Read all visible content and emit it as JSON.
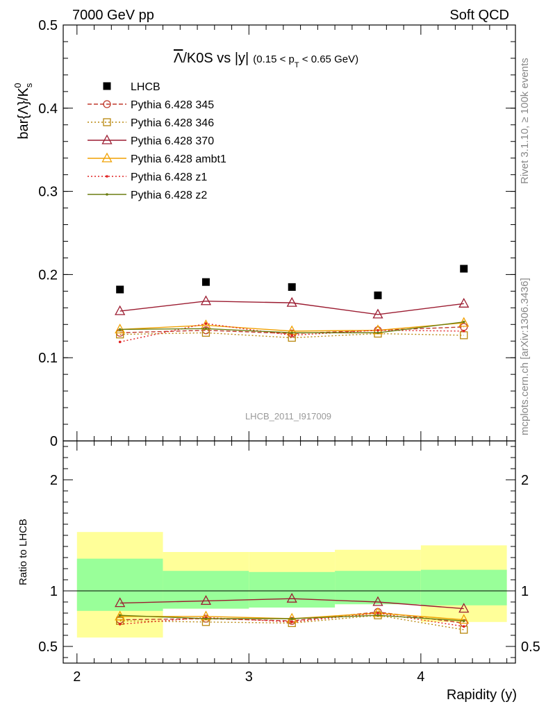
{
  "header": {
    "left": "7000 GeV pp",
    "right": "Soft QCD"
  },
  "side_labels": {
    "rivet": "Rivet 3.1.10, ≥ 100k events",
    "mcplots": "mcplots.cern.ch [arXiv:1306.3436]"
  },
  "watermark": "LHCB_2011_I917009",
  "colors": {
    "data": "#000000",
    "p345": "#c0392b",
    "p346": "#b8860b",
    "p370": "#9b1b30",
    "ambt1": "#f0a000",
    "z1": "#e02020",
    "z2": "#6b7d10",
    "band_inner": "#99ff99",
    "band_outer": "#ffff99"
  },
  "chart_data": [
    {
      "type": "scatter",
      "panel": "main",
      "title_main": "Λ/K0S vs |y|",
      "title_overline": "Λ",
      "title_rest": "/K0S vs |y|",
      "title_cut": "(0.15 < p",
      "title_cut_sub": "T",
      "title_cut_end": " < 0.65 GeV)",
      "ylabel": "bar{Λ}/K",
      "ylabel_sup": "0",
      "ylabel_sub": "s",
      "xlabel": "Rapidity (y)",
      "xlim": [
        1.92,
        4.55
      ],
      "ylim": [
        0.0,
        0.5
      ],
      "yticks": [
        0,
        0.1,
        0.2,
        0.3,
        0.4,
        0.5
      ],
      "ytick_labels": [
        "0",
        "0.1",
        "0.2",
        "0.3",
        "0.4",
        "0.5"
      ],
      "x": [
        2.25,
        2.75,
        3.25,
        3.75,
        4.25
      ],
      "series": [
        {
          "name": "LHCB",
          "key": "data",
          "values": [
            0.182,
            0.191,
            0.185,
            0.175,
            0.207
          ]
        },
        {
          "name": "Pythia 6.428 345",
          "key": "p345",
          "values": [
            0.13,
            0.133,
            0.129,
            0.133,
            0.137
          ]
        },
        {
          "name": "Pythia 6.428 346",
          "key": "p346",
          "values": [
            0.128,
            0.13,
            0.124,
            0.129,
            0.127
          ]
        },
        {
          "name": "Pythia 6.428 370",
          "key": "p370",
          "values": [
            0.156,
            0.168,
            0.166,
            0.152,
            0.165
          ]
        },
        {
          "name": "Pythia 6.428 ambt1",
          "key": "ambt1",
          "values": [
            0.134,
            0.139,
            0.132,
            0.133,
            0.142
          ]
        },
        {
          "name": "Pythia 6.428 z1",
          "key": "z1",
          "values": [
            0.119,
            0.141,
            0.127,
            0.133,
            0.132
          ]
        },
        {
          "name": "Pythia 6.428 z2",
          "key": "z2",
          "values": [
            0.134,
            0.135,
            0.13,
            0.13,
            0.143
          ]
        }
      ]
    },
    {
      "type": "scatter",
      "panel": "ratio",
      "ylabel": "Ratio to LHCB",
      "xlabel": "Rapidity (y)",
      "xlim": [
        1.92,
        4.55
      ],
      "ylim": [
        0.35,
        2.35
      ],
      "xticks": [
        2,
        3,
        4
      ],
      "xtick_labels": [
        "2",
        "3",
        "4"
      ],
      "yticks": [
        0.5,
        1,
        2
      ],
      "ytick_labels": [
        "0.5",
        "1",
        "2"
      ],
      "bins": [
        [
          2.0,
          2.5
        ],
        [
          2.5,
          3.0
        ],
        [
          3.0,
          3.5
        ],
        [
          3.5,
          4.0
        ],
        [
          4.0,
          4.5
        ]
      ],
      "band_inner": [
        [
          0.82,
          1.29
        ],
        [
          0.84,
          1.18
        ],
        [
          0.85,
          1.17
        ],
        [
          0.88,
          1.18
        ],
        [
          0.87,
          1.19
        ]
      ],
      "band_outer": [
        [
          0.58,
          1.53
        ],
        [
          0.84,
          1.35
        ],
        [
          0.85,
          1.35
        ],
        [
          0.88,
          1.37
        ],
        [
          0.72,
          1.41
        ]
      ],
      "x": [
        2.25,
        2.75,
        3.25,
        3.75,
        4.25
      ],
      "series": [
        {
          "name": "Pythia 6.428 345",
          "key": "p345",
          "values": [
            0.74,
            0.75,
            0.73,
            0.81,
            0.71
          ]
        },
        {
          "name": "Pythia 6.428 346",
          "key": "p346",
          "values": [
            0.73,
            0.72,
            0.71,
            0.78,
            0.65
          ]
        },
        {
          "name": "Pythia 6.428 370",
          "key": "p370",
          "values": [
            0.89,
            0.91,
            0.93,
            0.9,
            0.84
          ]
        },
        {
          "name": "Pythia 6.428 ambt1",
          "key": "ambt1",
          "values": [
            0.77,
            0.77,
            0.75,
            0.8,
            0.74
          ]
        },
        {
          "name": "Pythia 6.428 z1",
          "key": "z1",
          "values": [
            0.7,
            0.76,
            0.72,
            0.8,
            0.68
          ]
        },
        {
          "name": "Pythia 6.428 z2",
          "key": "z2",
          "values": [
            0.78,
            0.75,
            0.75,
            0.78,
            0.73
          ]
        }
      ]
    }
  ]
}
